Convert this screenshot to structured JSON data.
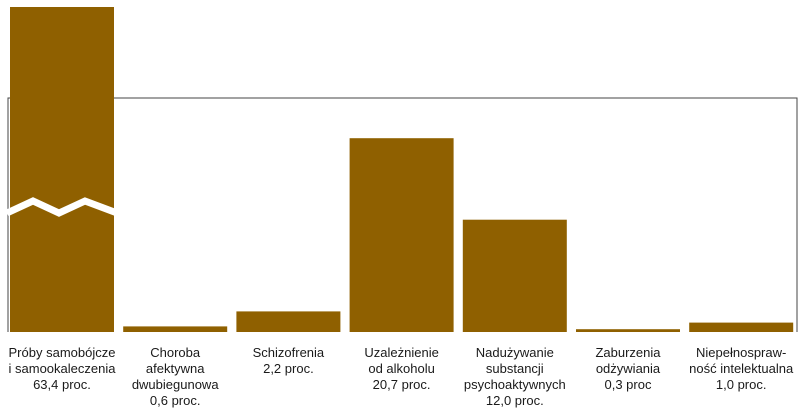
{
  "chart_data": {
    "type": "bar",
    "title": "",
    "xlabel": "",
    "ylabel": "",
    "ylim": [
      0,
      25
    ],
    "axis_break": true,
    "grid": false,
    "bar_color": "#8f6000",
    "categories": [
      {
        "lines": [
          "Próby samobójcze",
          "i samookaleczenia",
          "63,4 proc."
        ],
        "value": 63.4
      },
      {
        "lines": [
          "Choroba",
          "afektywna",
          "dwubiegunowa",
          "0,6 proc."
        ],
        "value": 0.6
      },
      {
        "lines": [
          "Schizofrenia",
          "2,2 proc."
        ],
        "value": 2.2
      },
      {
        "lines": [
          "Uzależnienie",
          "od alkoholu",
          "20,7 proc."
        ],
        "value": 20.7
      },
      {
        "lines": [
          "Nadużywanie",
          "substancji",
          "psychoaktywnych",
          "12,0 proc."
        ],
        "value": 12.0
      },
      {
        "lines": [
          "Zaburzenia",
          "odżywiania",
          "0,3 proc"
        ],
        "value": 0.3
      },
      {
        "lines": [
          "Niepełnospraw-",
          "ność intelektualna",
          "1,0 proc."
        ],
        "value": 1.0
      }
    ]
  }
}
